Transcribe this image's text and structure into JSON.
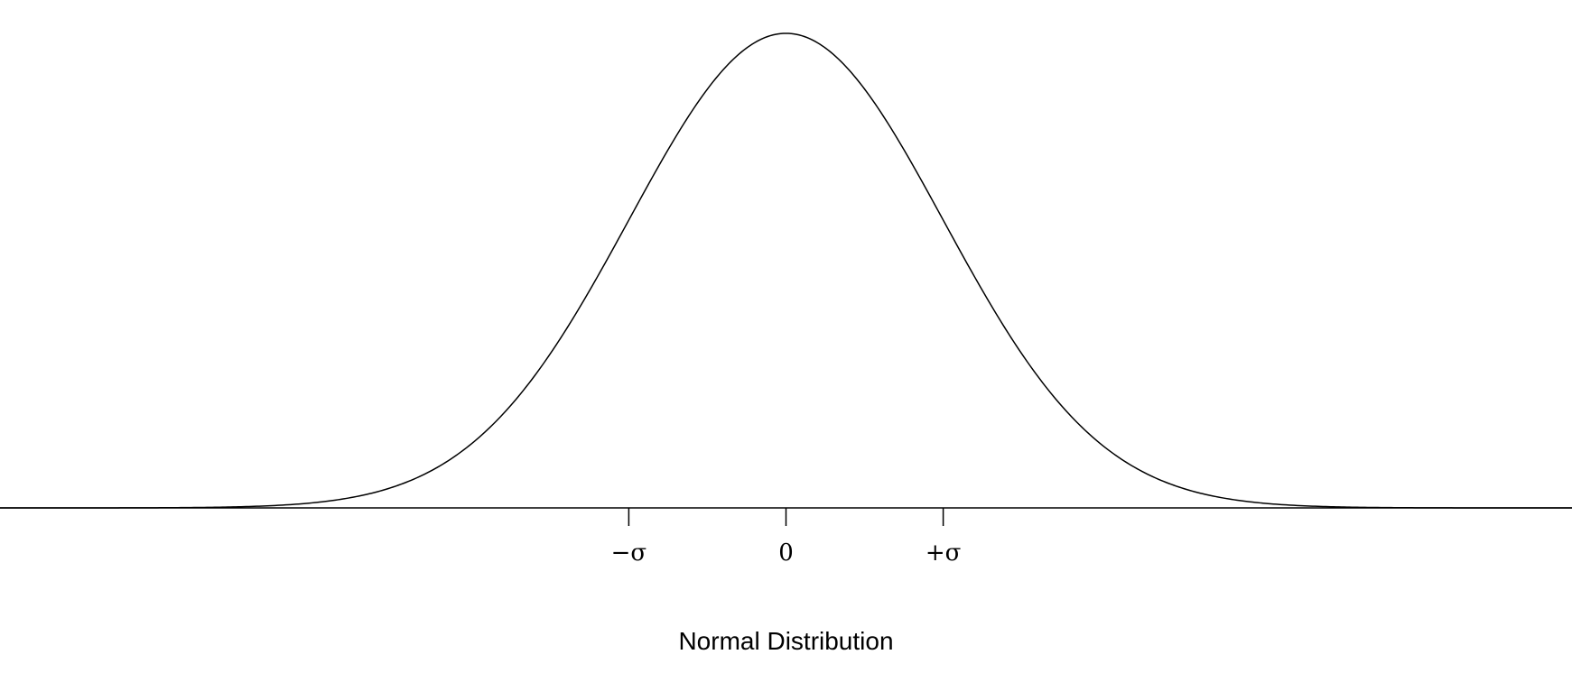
{
  "chart_data": {
    "type": "line",
    "title": "",
    "xlabel": "Normal Distribution",
    "ylabel": "",
    "xlim": [
      -5,
      5
    ],
    "ylim": [
      0,
      0.3989
    ],
    "grid": false,
    "legend": "none",
    "x_ticks": [
      {
        "value": -1,
        "label": "−σ"
      },
      {
        "value": 0,
        "label": "0"
      },
      {
        "value": 1,
        "label": "+σ"
      }
    ],
    "series": [
      {
        "function": "standard normal density",
        "mean": 0,
        "sd": 1,
        "color": "#000000"
      }
    ]
  }
}
